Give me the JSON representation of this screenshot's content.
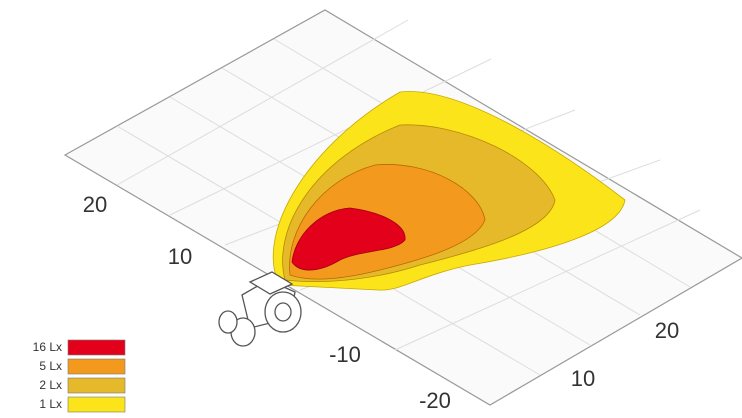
{
  "axis_labels": {
    "left": [
      "20",
      "10"
    ],
    "front": [
      "-10",
      "-20"
    ],
    "right": [
      "20",
      "10"
    ]
  },
  "legend": [
    {
      "label": "16 Lx",
      "color": "#e3001b"
    },
    {
      "label": "5 Lx",
      "color": "#f39a1e"
    },
    {
      "label": "2 Lx",
      "color": "#e6b92a"
    },
    {
      "label": "1 Lx",
      "color": "#fbe51a"
    }
  ]
}
